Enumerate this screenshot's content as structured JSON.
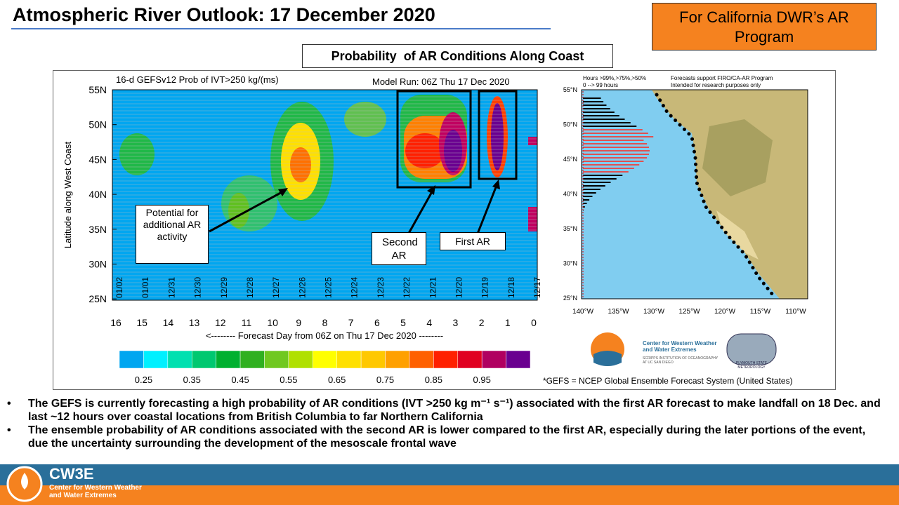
{
  "header": {
    "title": "Atmospheric River Outlook: 17 December 2020",
    "badge": "For California DWR’s AR Program"
  },
  "panel_title": "Probability  of AR Conditions Along Coast",
  "left_chart": {
    "title": "16-d GEFSv12 Prob of IVT>250 kg/(ms)",
    "model_run": "Model Run: 06Z Thu 17 Dec 2020",
    "y_label": "Latitude along West Coast",
    "y_ticks": [
      "55N",
      "50N",
      "45N",
      "40N",
      "35N",
      "30N",
      "25N"
    ],
    "dates": [
      "01/02",
      "01/01",
      "12/31",
      "12/30",
      "12/29",
      "12/28",
      "12/27",
      "12/26",
      "12/25",
      "12/24",
      "12/23",
      "12/22",
      "12/21",
      "12/20",
      "12/19",
      "12/18",
      "12/17"
    ],
    "days": [
      "16",
      "15",
      "14",
      "13",
      "12",
      "11",
      "10",
      "9",
      "8",
      "7",
      "6",
      "5",
      "4",
      "3",
      "2",
      "1",
      "0"
    ],
    "x_label": "<-------- Forecast Day from 06Z on Thu 17 Dec 2020 --------",
    "annotations": [
      "Potential for additional AR activity",
      "Second AR",
      "First AR"
    ],
    "colorbar_labels": [
      "0.25",
      "0.35",
      "0.45",
      "0.55",
      "0.65",
      "0.75",
      "0.85",
      "0.95"
    ]
  },
  "right_map": {
    "legend": "Hours >99%,>75%,>50%",
    "legend2": "0 --> 99 hours",
    "note1": "Forecasts support FIRO/CA-AR Program",
    "note2": "Intended for research purposes only",
    "lat_ticks": [
      "55°N",
      "50°N",
      "45°N",
      "40°N",
      "35°N",
      "30°N",
      "25°N"
    ],
    "lon_ticks": [
      "140°W",
      "135°W",
      "130°W",
      "125°W",
      "120°W",
      "115°W",
      "110°W"
    ],
    "logo1": "Center for Western Weather and Water Extremes",
    "logo1_sub": "SCRIPPS INSTITUTION OF OCEANOGRAPHY AT UC SAN DIEGO",
    "logo2": "PLYMOUTH STATE METEOROLOGY"
  },
  "footnote": "*GEFS = NCEP Global Ensemble Forecast System (United States)",
  "bullets": [
    "The GEFS is currently forecasting a high probability of AR conditions (IVT >250 kg m⁻¹ s⁻¹) associated with the first AR forecast to make landfall on 18 Dec. and last ~12 hours over coastal locations from British Columbia to far Northern California",
    "The ensemble probability of AR conditions associated with the second AR is lower compared to the first AR, especially during the later portions of the event, due the uncertainty surrounding the development of the mesoscale frontal wave"
  ],
  "footer": {
    "brand": "CW3E",
    "name": "Center for Western Weather and Water Extremes"
  }
}
